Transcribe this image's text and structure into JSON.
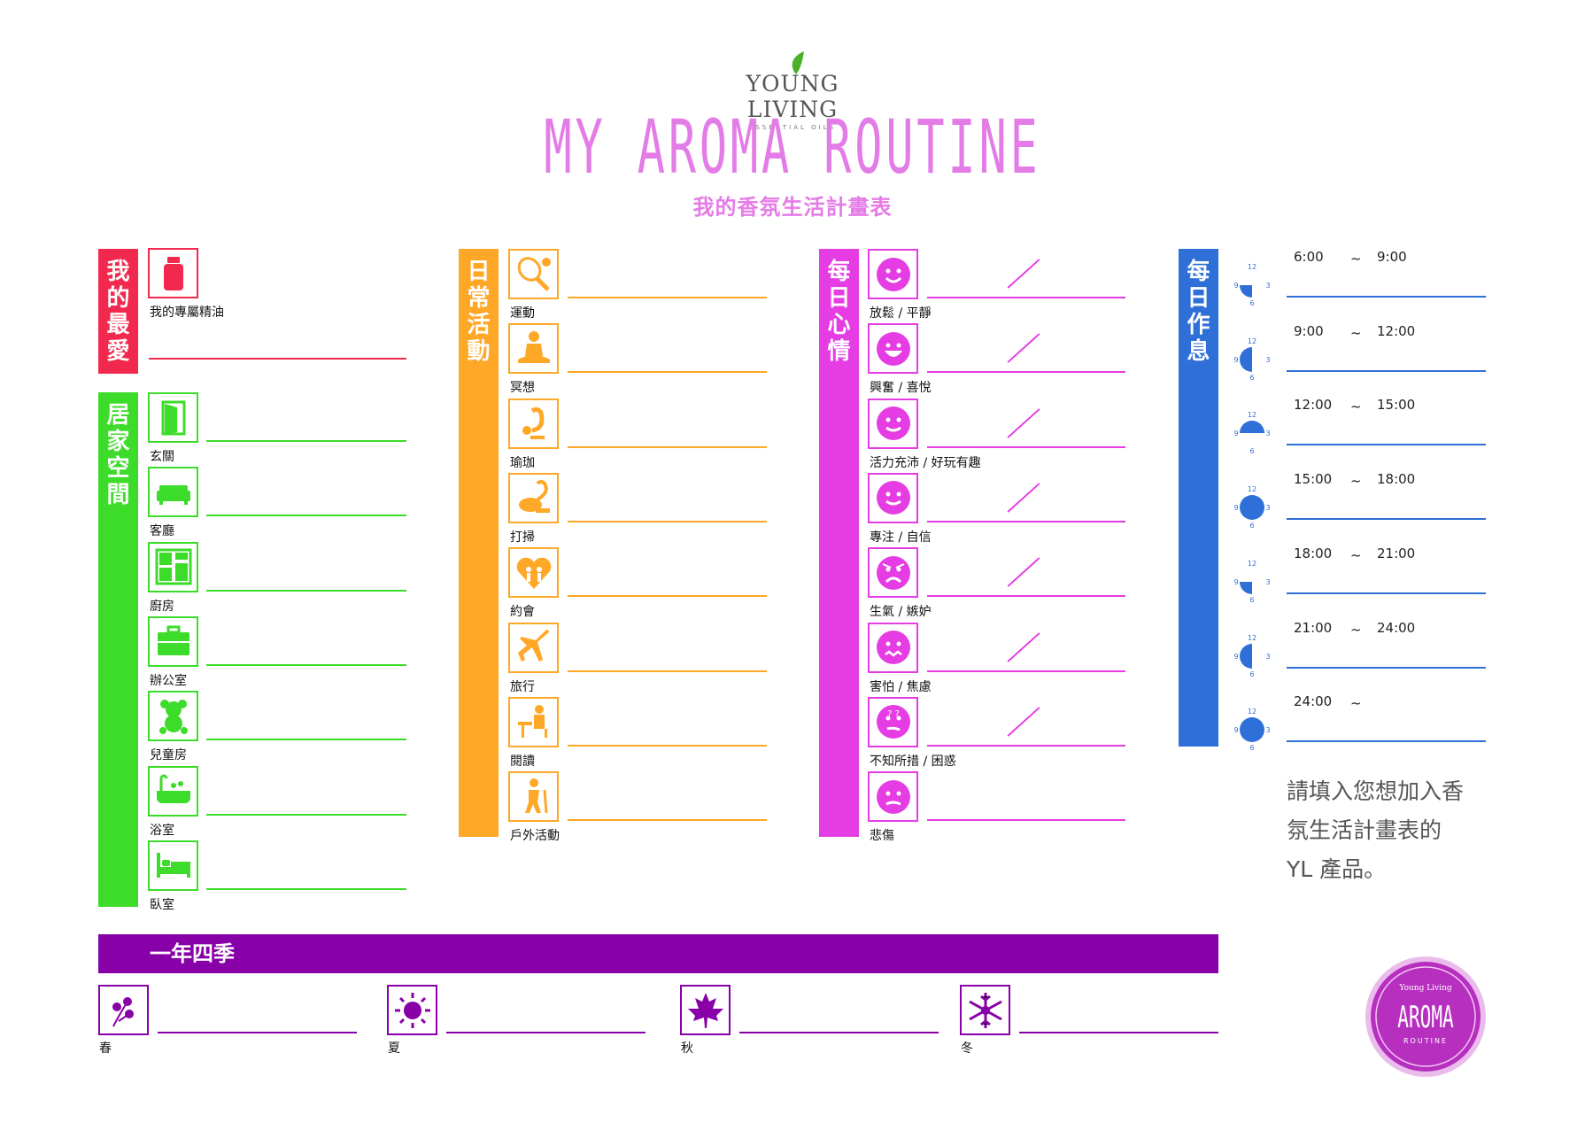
{
  "header": {
    "brand": "YOUNG LIVING",
    "brand_sub": "ESSENTIAL OILS",
    "title": "MY AROMA ROUTINE",
    "subtitle": "我的香氛生活計畫表"
  },
  "colors": {
    "red": "#f2294e",
    "green": "#3ddc2a",
    "orange": "#ffa726",
    "magenta": "#e53de3",
    "blue": "#2f6fd8",
    "purple": "#8800a8",
    "pink": "#e37ce6"
  },
  "favorites": {
    "title": "我的最愛",
    "items": [
      {
        "label": "我的專屬精油",
        "icon": "oil-bottle-icon"
      }
    ]
  },
  "home": {
    "title": "居家空間",
    "items": [
      {
        "label": "玄關",
        "icon": "door-icon"
      },
      {
        "label": "客廳",
        "icon": "sofa-icon"
      },
      {
        "label": "廚房",
        "icon": "kitchen-icon"
      },
      {
        "label": "辦公室",
        "icon": "briefcase-icon"
      },
      {
        "label": "兒童房",
        "icon": "teddy-bear-icon"
      },
      {
        "label": "浴室",
        "icon": "bathtub-icon"
      },
      {
        "label": "臥室",
        "icon": "bed-icon"
      }
    ]
  },
  "activities": {
    "title": "日常活動",
    "items": [
      {
        "label": "運動",
        "icon": "tennis-icon"
      },
      {
        "label": "冥想",
        "icon": "meditation-icon"
      },
      {
        "label": "瑜珈",
        "icon": "yoga-icon"
      },
      {
        "label": "打掃",
        "icon": "vacuum-icon"
      },
      {
        "label": "約會",
        "icon": "date-heart-icon"
      },
      {
        "label": "旅行",
        "icon": "airplane-icon"
      },
      {
        "label": "閱讀",
        "icon": "reading-icon"
      },
      {
        "label": "戶外活動",
        "icon": "hiking-icon"
      }
    ]
  },
  "moods": {
    "title": "每日心情",
    "items": [
      {
        "label": "放鬆 / 平靜",
        "icon": "smile-face-icon"
      },
      {
        "label": "興奮 / 喜悅",
        "icon": "laugh-face-icon"
      },
      {
        "label": "活力充沛 / 好玩有趣",
        "icon": "wink-face-icon"
      },
      {
        "label": "專注 / 自信",
        "icon": "confident-face-icon"
      },
      {
        "label": "生氣 / 嫉妒",
        "icon": "angry-face-icon"
      },
      {
        "label": "害怕 / 焦慮",
        "icon": "scared-face-icon"
      },
      {
        "label": "不知所措 / 困惑",
        "icon": "confused-face-icon"
      },
      {
        "label": "悲傷",
        "icon": "sad-face-icon"
      }
    ]
  },
  "schedule": {
    "title": "每日作息",
    "slots": [
      {
        "start": "6:00",
        "sep": "~",
        "end": "9:00",
        "clock": "6-9"
      },
      {
        "start": "9:00",
        "sep": "~",
        "end": "12:00",
        "clock": "9-12"
      },
      {
        "start": "12:00",
        "sep": "~",
        "end": "15:00",
        "clock": "12-15"
      },
      {
        "start": "15:00",
        "sep": "~",
        "end": "18:00",
        "clock": "15-18"
      },
      {
        "start": "18:00",
        "sep": "~",
        "end": "21:00",
        "clock": "18-21"
      },
      {
        "start": "21:00",
        "sep": "~",
        "end": "24:00",
        "clock": "21-24"
      },
      {
        "start": "24:00",
        "sep": "~",
        "end": "",
        "clock": "24-6"
      }
    ],
    "clock_nums": {
      "n12": "12",
      "n3": "3",
      "n6": "6",
      "n9": "9"
    }
  },
  "note": [
    "請填入您想加入香",
    "氛生活計畫表的",
    "YL 產品。"
  ],
  "seasons": {
    "title": "一年四季",
    "items": [
      {
        "label": "春",
        "icon": "flower-icon"
      },
      {
        "label": "夏",
        "icon": "sun-icon"
      },
      {
        "label": "秋",
        "icon": "maple-leaf-icon"
      },
      {
        "label": "冬",
        "icon": "snowflake-icon"
      }
    ]
  },
  "badge": {
    "top": "Young Living",
    "main": "AROMA",
    "bottom": "ROUTINE"
  }
}
